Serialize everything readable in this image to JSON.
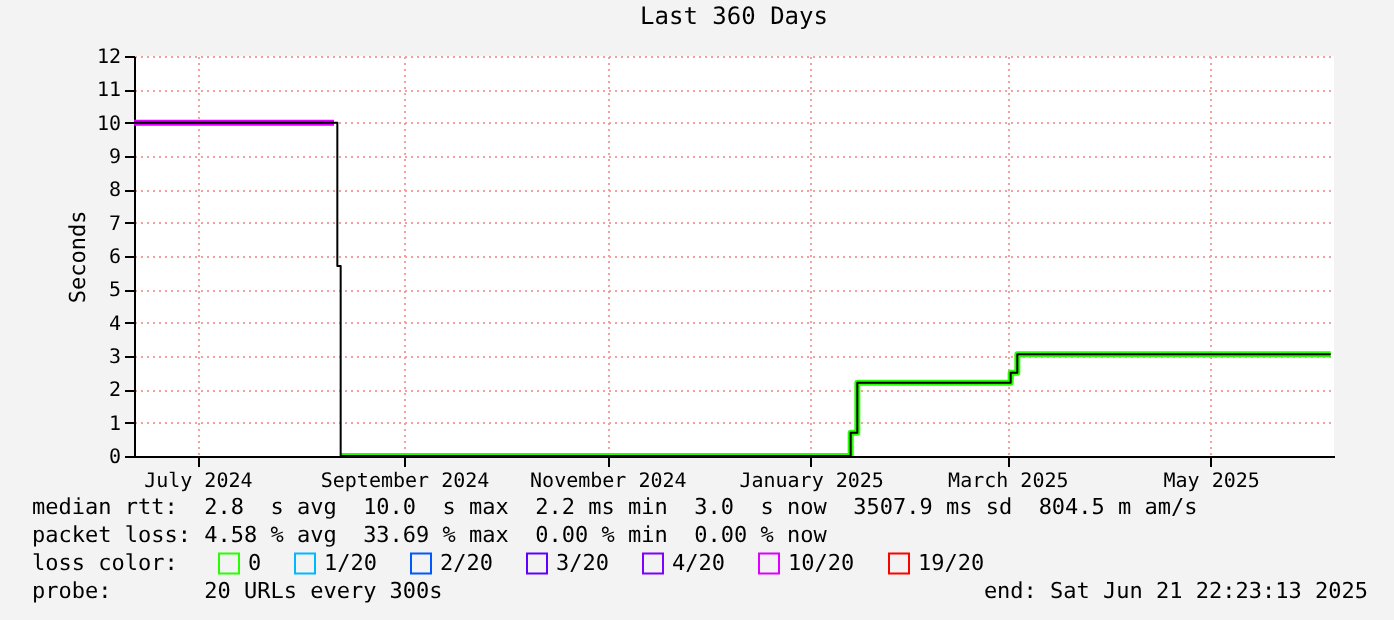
{
  "chart_data": {
    "type": "step",
    "title": "Last 360 Days",
    "ylabel": "Seconds",
    "legend_title": "loss color:",
    "legend": "bottom",
    "grid": true,
    "line_style": "solid",
    "x": [
      "2024-06-26",
      "2024-08-25",
      "2024-08-26",
      "2024-08-27",
      "2025-01-27",
      "2025-01-29",
      "2025-03-16",
      "2025-03-18",
      "2025-06-20"
    ],
    "xlim": [
      "2024-06-26",
      "2025-06-21"
    ],
    "xticks": [
      {
        "value": "2024-07-15",
        "label": "July 2024"
      },
      {
        "value": "2024-09-15",
        "label": "September 2024"
      },
      {
        "value": "2024-11-15",
        "label": "November 2024"
      },
      {
        "value": "2025-01-15",
        "label": "January 2025"
      },
      {
        "value": "2025-03-15",
        "label": "March 2025"
      },
      {
        "value": "2025-05-15",
        "label": "May 2025"
      }
    ],
    "ylim": [
      0,
      12
    ],
    "yticks": [
      0,
      1,
      2,
      3,
      4,
      5,
      6,
      7,
      8,
      9,
      10,
      11,
      12
    ],
    "series": [
      {
        "color": "#000000",
        "values": [
          10,
          10,
          5.7,
          0,
          0.7,
          2.2,
          2.5,
          3.05,
          3.05
        ]
      },
      {
        "name": "0",
        "color": "#26ff00",
        "values": [
          null,
          null,
          null,
          0,
          0.7,
          2.2,
          2.5,
          3.05,
          3.05
        ]
      },
      {
        "name": "1/20",
        "color": "#00b8ff",
        "values": [
          null,
          null,
          null,
          null,
          null,
          null,
          null,
          null,
          null
        ]
      },
      {
        "name": "2/20",
        "color": "#0059ff",
        "values": [
          null,
          null,
          null,
          null,
          null,
          null,
          null,
          null,
          null
        ]
      },
      {
        "name": "3/20",
        "color": "#5e00ff",
        "values": [
          null,
          null,
          null,
          null,
          null,
          null,
          null,
          null,
          null
        ]
      },
      {
        "name": "4/20",
        "color": "#7e00ff",
        "values": [
          null,
          null,
          null,
          null,
          null,
          null,
          null,
          null,
          null
        ]
      },
      {
        "name": "10/20",
        "color": "#dd00ff",
        "values": [
          10,
          10,
          null,
          null,
          null,
          null,
          null,
          null,
          null
        ]
      },
      {
        "name": "19/20",
        "color": "#ff0000",
        "values": [
          null,
          null,
          null,
          null,
          null,
          null,
          null,
          null,
          null
        ]
      }
    ],
    "annotations": [
      "median rtt:  2.8  s avg  10.0  s max  2.2 ms min  3.0  s now  3507.9 ms sd  804.5 m am/s",
      "packet loss: 4.58 % avg  33.69 % max  0.00 % min  0.00 % now",
      "probe:       20 URLs every 300s",
      "end: Sat Jun 21 22:23:13 2025"
    ]
  }
}
